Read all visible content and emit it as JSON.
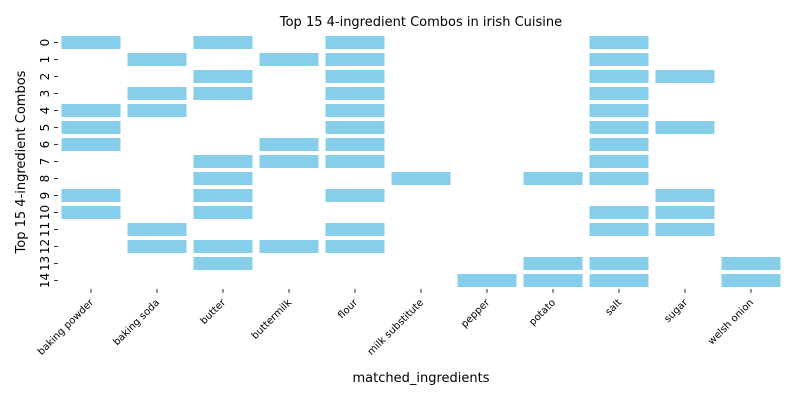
{
  "chart_data": {
    "type": "heatmap",
    "title": "Top 15 4-ingredient Combos in irish Cuisine",
    "xlabel": "matched_ingredients",
    "ylabel": "Top 15 4-ingredient Combos",
    "categories": [
      "baking powder",
      "baking soda",
      "butter",
      "buttermilk",
      "flour",
      "milk substitute",
      "pepper",
      "potato",
      "salt",
      "sugar",
      "welsh onion"
    ],
    "rows": [
      "0",
      "1",
      "2",
      "3",
      "4",
      "5",
      "6",
      "7",
      "8",
      "9",
      "10",
      "11",
      "12",
      "13",
      "14"
    ],
    "combos": [
      [
        "baking powder",
        "butter",
        "flour",
        "salt"
      ],
      [
        "baking soda",
        "buttermilk",
        "flour",
        "salt"
      ],
      [
        "butter",
        "flour",
        "salt",
        "sugar"
      ],
      [
        "baking soda",
        "butter",
        "flour",
        "salt"
      ],
      [
        "baking powder",
        "baking soda",
        "flour",
        "salt"
      ],
      [
        "baking powder",
        "flour",
        "salt",
        "sugar"
      ],
      [
        "baking powder",
        "buttermilk",
        "flour",
        "salt"
      ],
      [
        "butter",
        "buttermilk",
        "flour",
        "salt"
      ],
      [
        "butter",
        "milk substitute",
        "potato",
        "salt"
      ],
      [
        "baking powder",
        "butter",
        "flour",
        "sugar"
      ],
      [
        "baking powder",
        "butter",
        "salt",
        "sugar"
      ],
      [
        "baking soda",
        "flour",
        "salt",
        "sugar"
      ],
      [
        "baking soda",
        "butter",
        "buttermilk",
        "flour"
      ],
      [
        "butter",
        "potato",
        "salt",
        "welsh onion"
      ],
      [
        "pepper",
        "potato",
        "salt",
        "welsh onion"
      ]
    ],
    "cell_color": "#87ceeb",
    "grid": false
  }
}
